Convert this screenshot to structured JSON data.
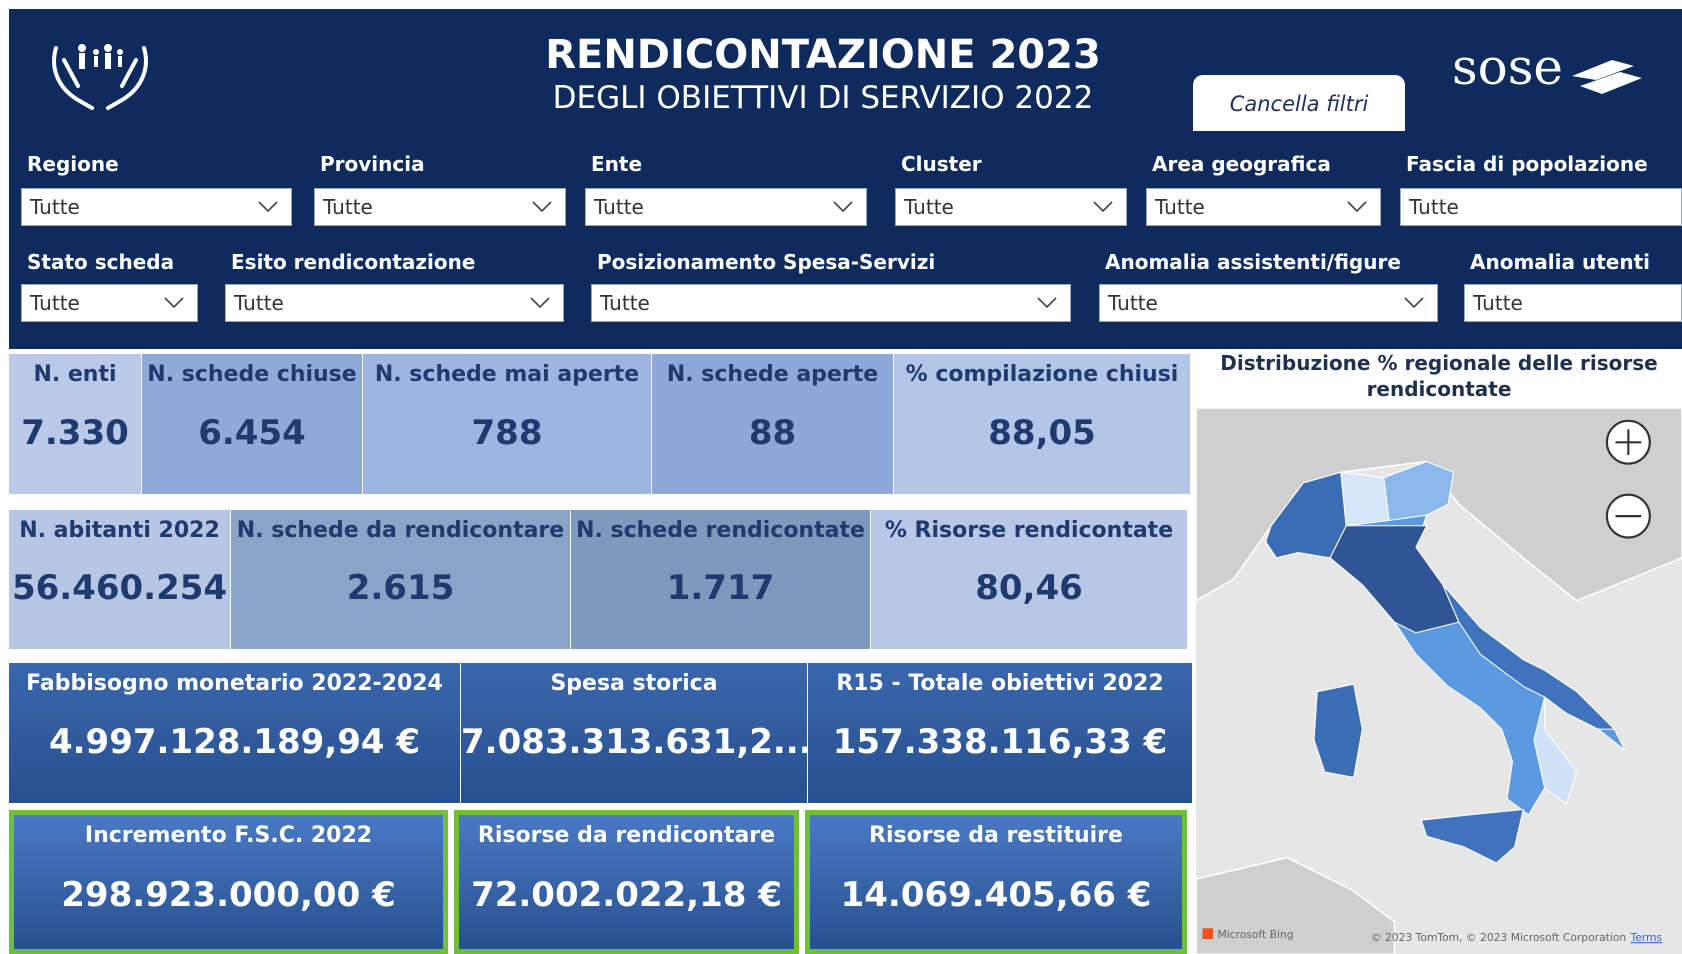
{
  "header": {
    "title": "RENDICONTAZIONE 2023",
    "subtitle": "DEGLI OBIETTIVI DI SERVIZIO 2022",
    "clear_button": "Cancella filtri",
    "logo": "sose"
  },
  "filters": [
    {
      "label": "Regione",
      "value": "Tutte"
    },
    {
      "label": "Provincia",
      "value": "Tutte"
    },
    {
      "label": "Ente",
      "value": "Tutte"
    },
    {
      "label": "Cluster",
      "value": "Tutte"
    },
    {
      "label": "Area geografica",
      "value": "Tutte"
    },
    {
      "label": "Fascia di popolazione",
      "value": "Tutte"
    },
    {
      "label": "Stato scheda",
      "value": "Tutte"
    },
    {
      "label": "Esito rendicontazione",
      "value": "Tutte"
    },
    {
      "label": "Posizionamento Spesa-Servizi",
      "value": "Tutte"
    },
    {
      "label": "Anomalia assistenti/figure",
      "value": "Tutte"
    },
    {
      "label": "Anomalia utenti",
      "value": "Tutte"
    }
  ],
  "kpis": [
    [
      {
        "label": "N. enti",
        "value": "7.330"
      },
      {
        "label": "N. schede chiuse",
        "value": "6.454"
      },
      {
        "label": "N. schede mai aperte",
        "value": "788"
      },
      {
        "label": "N. schede aperte",
        "value": "88"
      },
      {
        "label": "% compilazione chiusi",
        "value": "88,05"
      }
    ],
    [
      {
        "label": "N. abitanti 2022",
        "value": "56.460.254"
      },
      {
        "label": "N. schede da rendicontare",
        "value": "2.615"
      },
      {
        "label": "N. schede rendicontate",
        "value": "1.717"
      },
      {
        "label": "% Risorse rendicontate",
        "value": "80,46"
      }
    ],
    [
      {
        "label": "Fabbisogno monetario 2022-2024",
        "value": "4.997.128.189,94 €"
      },
      {
        "label": "Spesa storica",
        "value": "7.083.313.631,2..."
      },
      {
        "label": "R15 - Totale obiettivi 2022",
        "value": "157.338.116,33 €"
      }
    ],
    [
      {
        "label": "Incremento F.S.C. 2022",
        "value": "298.923.000,00 €"
      },
      {
        "label": "Risorse da rendicontare",
        "value": "72.002.022,18 €"
      },
      {
        "label": "Risorse da restituire",
        "value": "14.069.405,66 €"
      }
    ]
  ],
  "map": {
    "title": "Distribuzione % regionale delle risorse rendicontate",
    "provider": "Microsoft Bing",
    "copyright": "© 2023 TomTom, © 2023 Microsoft Corporation",
    "terms": "Terms"
  }
}
